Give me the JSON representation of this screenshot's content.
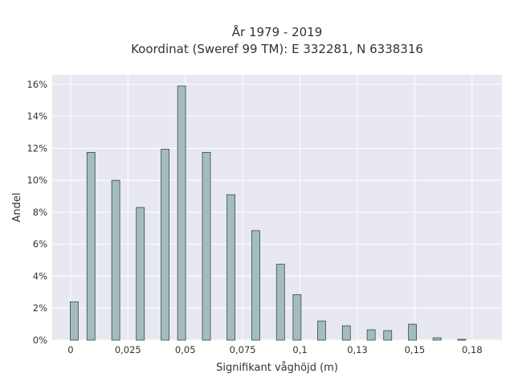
{
  "chart_data": {
    "type": "bar",
    "title_line1": "År 1979 - 2019",
    "title_line2": "Koordinat (Sweref 99 TM): E 332281, N 6338316",
    "xlabel": "Signifikant våghöjd (m)",
    "ylabel": "Andel",
    "x_ticks": [
      "0",
      "0,025",
      "0,05",
      "0,075",
      "0,1",
      "0,13",
      "0,15",
      "0,18"
    ],
    "x_tick_values": [
      0,
      0.025,
      0.05,
      0.075,
      0.1,
      0.125,
      0.15,
      0.175
    ],
    "y_ticks": [
      "0%",
      "2%",
      "4%",
      "6%",
      "8%",
      "10%",
      "12%",
      "14%",
      "16%"
    ],
    "y_tick_values": [
      0,
      2,
      4,
      6,
      8,
      10,
      12,
      14,
      16
    ],
    "xlim": [
      -0.008,
      0.188
    ],
    "ylim": [
      0,
      16.6
    ],
    "bar_width": 0.0035,
    "x": [
      0.0016,
      0.0089,
      0.0197,
      0.0304,
      0.0412,
      0.0484,
      0.0592,
      0.0699,
      0.0807,
      0.0915,
      0.0987,
      0.1094,
      0.1202,
      0.131,
      0.1382,
      0.149,
      0.1597,
      0.1705
    ],
    "values": [
      2.4,
      11.75,
      10.0,
      8.3,
      11.95,
      15.9,
      11.75,
      9.1,
      6.85,
      4.75,
      2.85,
      1.2,
      0.9,
      0.65,
      0.6,
      1.0,
      0.15,
      0.05
    ],
    "bar_color": "#a5bcbc",
    "bar_edge_color": "#2f4f4f",
    "plot_background": "#e8e8f0",
    "grid": true,
    "grid_color": "#ffffff"
  }
}
